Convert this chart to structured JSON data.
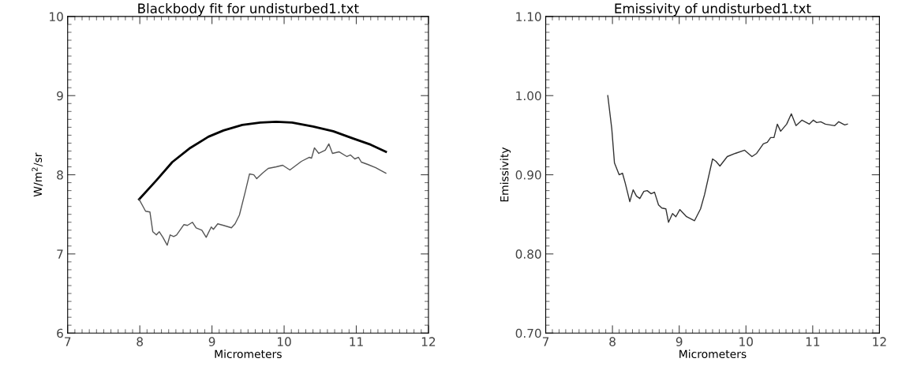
{
  "chart_data": [
    {
      "type": "line",
      "title": "Blackbody fit for undisturbed1.txt",
      "xlabel": "Micrometers",
      "ylabel": "W/m$^{2}$/sr",
      "xlim": [
        7,
        12
      ],
      "xticks": [
        7,
        8,
        9,
        10,
        11,
        12
      ],
      "ylim": [
        6,
        10
      ],
      "yticks": [
        6,
        7,
        8,
        9,
        10
      ],
      "grid": false,
      "series": [
        {
          "color": "#000000",
          "x": [
            7.99,
            8.23,
            8.45,
            8.7,
            8.95,
            9.16,
            9.42,
            9.67,
            9.89,
            10.11,
            10.4,
            10.68,
            10.95,
            11.2,
            11.41
          ],
          "values": [
            7.69,
            7.93,
            8.16,
            8.34,
            8.48,
            8.56,
            8.63,
            8.66,
            8.67,
            8.66,
            8.61,
            8.55,
            8.46,
            8.38,
            8.29
          ]
        },
        {
          "color": "#555555",
          "x": [
            7.99,
            8.08,
            8.14,
            8.18,
            8.23,
            8.27,
            8.32,
            8.38,
            8.42,
            8.47,
            8.51,
            8.61,
            8.66,
            8.73,
            8.78,
            8.86,
            8.92,
            8.99,
            9.02,
            9.08,
            9.16,
            9.27,
            9.32,
            9.38,
            9.46,
            9.52,
            9.58,
            9.62,
            9.7,
            9.78,
            9.89,
            9.98,
            10.08,
            10.24,
            10.35,
            10.38,
            10.42,
            10.48,
            10.57,
            10.62,
            10.67,
            10.76,
            10.87,
            10.92,
            10.98,
            11.03,
            11.07,
            11.16,
            11.27,
            11.33,
            11.41
          ],
          "values": [
            7.69,
            7.54,
            7.53,
            7.28,
            7.24,
            7.28,
            7.21,
            7.11,
            7.24,
            7.22,
            7.24,
            7.37,
            7.36,
            7.4,
            7.33,
            7.3,
            7.21,
            7.34,
            7.31,
            7.38,
            7.36,
            7.33,
            7.38,
            7.49,
            7.78,
            8.01,
            8.0,
            7.95,
            8.02,
            8.08,
            8.1,
            8.12,
            8.06,
            8.17,
            8.22,
            8.21,
            8.34,
            8.27,
            8.31,
            8.39,
            8.27,
            8.29,
            8.23,
            8.25,
            8.2,
            8.22,
            8.16,
            8.13,
            8.09,
            8.06,
            8.02
          ]
        }
      ]
    },
    {
      "type": "line",
      "title": "Emissivity of undisturbed1.txt",
      "xlabel": "Micrometers",
      "ylabel": "Emissivity",
      "xlim": [
        7,
        12
      ],
      "xticks": [
        7,
        8,
        9,
        10,
        11,
        12
      ],
      "ylim": [
        0.7,
        1.1
      ],
      "yticks": [
        {
          "value": 0.7,
          "label": "0.70"
        },
        {
          "value": 0.8,
          "label": "0.80"
        },
        {
          "value": 0.9,
          "label": "0.90"
        },
        {
          "value": 1.0,
          "label": "1.00"
        },
        {
          "value": 1.1,
          "label": "1.10"
        }
      ],
      "grid": false,
      "series": [
        {
          "color": "#333333",
          "x": [
            7.93,
            7.99,
            8.03,
            8.1,
            8.15,
            8.19,
            8.26,
            8.31,
            8.36,
            8.41,
            8.47,
            8.52,
            8.58,
            8.63,
            8.69,
            8.74,
            8.8,
            8.84,
            8.9,
            8.95,
            9.01,
            9.11,
            9.23,
            9.32,
            9.38,
            9.5,
            9.55,
            9.61,
            9.72,
            9.84,
            9.98,
            10.09,
            10.16,
            10.26,
            10.32,
            10.37,
            10.42,
            10.47,
            10.52,
            10.61,
            10.68,
            10.75,
            10.84,
            10.95,
            11.01,
            11.06,
            11.12,
            11.19,
            11.33,
            11.39,
            11.48,
            11.52
          ],
          "values": [
            1.0,
            0.958,
            0.915,
            0.9,
            0.902,
            0.89,
            0.866,
            0.881,
            0.873,
            0.87,
            0.879,
            0.88,
            0.876,
            0.878,
            0.862,
            0.858,
            0.857,
            0.84,
            0.851,
            0.847,
            0.856,
            0.847,
            0.842,
            0.857,
            0.875,
            0.92,
            0.917,
            0.911,
            0.923,
            0.927,
            0.931,
            0.923,
            0.927,
            0.939,
            0.941,
            0.947,
            0.947,
            0.964,
            0.955,
            0.964,
            0.977,
            0.962,
            0.969,
            0.964,
            0.969,
            0.966,
            0.967,
            0.964,
            0.962,
            0.967,
            0.963,
            0.964
          ]
        }
      ]
    }
  ]
}
